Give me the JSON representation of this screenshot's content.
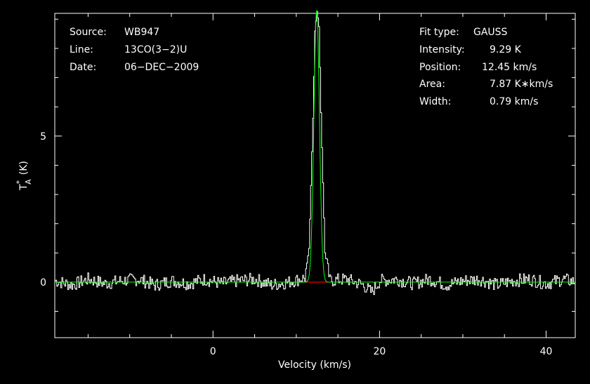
{
  "info_left": [
    {
      "key": "Source:",
      "value": "WB947"
    },
    {
      "key": "Line:",
      "value": "13CO(3−2)U"
    },
    {
      "key": "Date:",
      "value": "06−DEC−2009"
    }
  ],
  "info_right": [
    {
      "key": "Fit type:",
      "value": "GAUSS"
    },
    {
      "key": "Intensity:",
      "value": "9.29 K"
    },
    {
      "key": "Position:",
      "value": "12.45 km/s"
    },
    {
      "key": "Area:",
      "value": "7.87 K∗km/s"
    },
    {
      "key": "Width:",
      "value": "0.79 km/s"
    }
  ],
  "chart_data": {
    "type": "line",
    "xlabel": "Velocity (km/s)",
    "ylabel_main": "T",
    "ylabel_sup": "*",
    "ylabel_sub": "A",
    "ylabel_unit": "(K)",
    "xlim": [
      -19,
      43.5
    ],
    "ylim": [
      -1.9,
      9.2
    ],
    "x_ticks": [
      0,
      20,
      40
    ],
    "x_tick_labels": [
      "0",
      "20",
      "40"
    ],
    "y_ticks": [
      0,
      5
    ],
    "y_tick_labels": [
      "0",
      "5"
    ],
    "series": [
      {
        "kind": "spectrum",
        "color": "#ffffff",
        "x": [
          -19,
          -17,
          -15,
          -13,
          -11,
          -9,
          -7,
          -5,
          -3,
          -1,
          1,
          3,
          5,
          7,
          9,
          11,
          11.5,
          12.0,
          12.2,
          12.45,
          12.7,
          12.9,
          13.4,
          14,
          16,
          18,
          19,
          20,
          22,
          24,
          26,
          28,
          30,
          32,
          34,
          36,
          38,
          40,
          42,
          43.5
        ],
        "y": [
          0.05,
          -0.1,
          0.1,
          -0.05,
          0.05,
          0.1,
          -0.1,
          0.05,
          -0.05,
          0.1,
          -0.05,
          0.05,
          0.1,
          -0.1,
          0.0,
          0.15,
          1.2,
          6.0,
          8.6,
          9.3,
          8.7,
          6.0,
          1.0,
          0.05,
          0.1,
          -0.1,
          -0.35,
          0.05,
          0.1,
          -0.05,
          0.1,
          -0.1,
          0.05,
          0.1,
          -0.1,
          0.05,
          0.1,
          -0.05,
          0.1,
          0.0
        ]
      },
      {
        "kind": "fit",
        "color": "#00ff00",
        "model": "gauss",
        "amplitude": 9.29,
        "center": 12.45,
        "width": 0.79
      },
      {
        "kind": "baseline",
        "color": "#ff0000",
        "x": [
          10.5,
          13.8
        ],
        "y": [
          0,
          0
        ]
      }
    ]
  }
}
